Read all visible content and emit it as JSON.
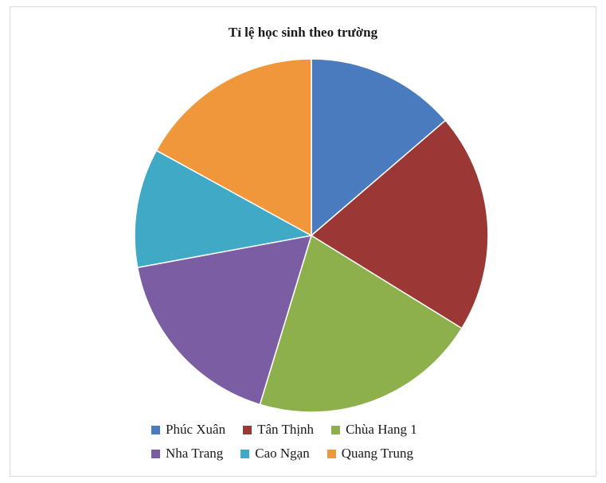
{
  "chart_data": {
    "type": "pie",
    "title": "Tỉ lệ học sinh theo trường",
    "categories": [
      "Phúc Xuân",
      "Tân Thịnh",
      "Chùa Hang 1",
      "Nha Trang",
      "Cao Ngạn",
      "Quang Trung"
    ],
    "values": [
      13.7,
      20.1,
      20.9,
      17.4,
      10.9,
      17.0
    ],
    "colors": [
      "#4a7bbf",
      "#9b3835",
      "#8db04c",
      "#7b5da3",
      "#3fa9c6",
      "#f0973c"
    ],
    "legend_position": "bottom"
  }
}
